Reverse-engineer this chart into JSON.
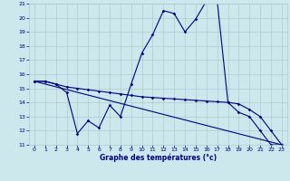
{
  "xlabel": "Graphe des températures (°c)",
  "bg_color": "#cce8ec",
  "grid_color": "#aacccc",
  "line_color": "#000080",
  "xlim": [
    -0.5,
    23.5
  ],
  "ylim": [
    11,
    21
  ],
  "yticks": [
    11,
    12,
    13,
    14,
    15,
    16,
    17,
    18,
    19,
    20,
    21
  ],
  "xticks": [
    0,
    1,
    2,
    3,
    4,
    5,
    6,
    7,
    8,
    9,
    10,
    11,
    12,
    13,
    14,
    15,
    16,
    17,
    18,
    19,
    20,
    21,
    22,
    23
  ],
  "line1_x": [
    0,
    1,
    2,
    3,
    4,
    5,
    6,
    7,
    8,
    9,
    10,
    11,
    12,
    13,
    14,
    15,
    16,
    17,
    18,
    19,
    20,
    21,
    22,
    23
  ],
  "line1_y": [
    15.5,
    15.5,
    15.3,
    14.7,
    11.8,
    12.7,
    12.2,
    13.8,
    13.0,
    15.3,
    17.5,
    18.8,
    20.5,
    20.3,
    19.0,
    19.9,
    21.2,
    21.2,
    14.0,
    13.3,
    13.0,
    12.0,
    11.0,
    11.0
  ],
  "line2_x": [
    0,
    1,
    2,
    3,
    4,
    5,
    6,
    7,
    8,
    9,
    10,
    11,
    12,
    13,
    14,
    15,
    16,
    17,
    18,
    19,
    20,
    21,
    22,
    23
  ],
  "line2_y": [
    15.5,
    15.5,
    15.3,
    15.1,
    15.0,
    14.9,
    14.8,
    14.7,
    14.6,
    14.5,
    14.4,
    14.35,
    14.3,
    14.25,
    14.2,
    14.15,
    14.1,
    14.05,
    14.0,
    13.9,
    13.5,
    13.0,
    12.0,
    11.0
  ],
  "line3_x": [
    0,
    23
  ],
  "line3_y": [
    15.5,
    11.0
  ],
  "tick_fontsize": 4.5,
  "label_fontsize": 5.5
}
